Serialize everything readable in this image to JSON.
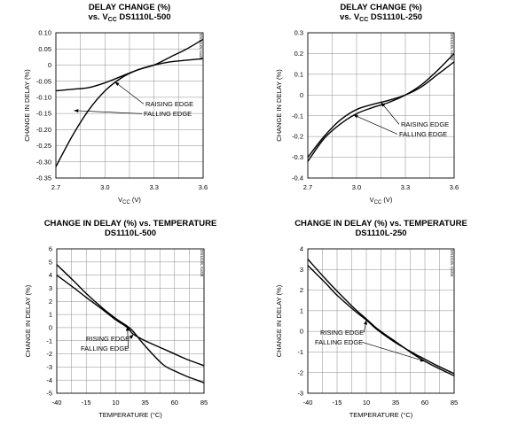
{
  "chart_data": [
    {
      "type": "line",
      "title_lines": [
        "DELAY CHANGE (%)",
        "vs. V_CC DS1110L-500"
      ],
      "title": "DELAY CHANGE (%) vs. VCC DS1110L-500",
      "xlabel": "VCC (V)",
      "ylabel": "CHANGE IN DELAY (%)",
      "xlim": [
        2.7,
        3.6
      ],
      "ylim": [
        -0.35,
        0.1
      ],
      "x_ticks": [
        "2.7",
        "3.0",
        "3.3",
        "3.6"
      ],
      "y_ticks": [
        "0.10",
        "0.05",
        "0",
        "-0.05",
        "-0.10",
        "-0.15",
        "-0.20",
        "-0.25",
        "-0.30",
        "-0.35"
      ],
      "grid": true,
      "code": "DS1110L toc01",
      "series": [
        {
          "name": "RAISING EDGE",
          "x": [
            2.7,
            2.8,
            2.9,
            3.0,
            3.1,
            3.2,
            3.3,
            3.4,
            3.5,
            3.6
          ],
          "y": [
            -0.08,
            -0.075,
            -0.07,
            -0.055,
            -0.035,
            -0.015,
            0.0,
            0.01,
            0.015,
            0.02
          ]
        },
        {
          "name": "FALLING EDGE",
          "x": [
            2.7,
            2.8,
            2.9,
            3.0,
            3.1,
            3.2,
            3.3,
            3.4,
            3.5,
            3.6
          ],
          "y": [
            -0.315,
            -0.22,
            -0.14,
            -0.08,
            -0.04,
            -0.015,
            0.0,
            0.025,
            0.05,
            0.08
          ]
        }
      ],
      "annotations": [
        {
          "text": "RAISING EDGE",
          "series": 0,
          "x": 3.06,
          "y": -0.052
        },
        {
          "text": "FALLING EDGE",
          "series": 1,
          "x": 2.81,
          "y": -0.141
        }
      ]
    },
    {
      "type": "line",
      "title_lines": [
        "DELAY CHANGE (%)",
        "vs. V_CC DS1110L-250"
      ],
      "title": "DELAY CHANGE (%) vs. VCC DS1110L-250",
      "xlabel": "VCC (V)",
      "ylabel": "CHANGE IN DELAY (%)",
      "xlim": [
        2.7,
        3.6
      ],
      "ylim": [
        -0.4,
        0.3
      ],
      "x_ticks": [
        "2.7",
        "3.0",
        "3.3",
        "3.6"
      ],
      "y_ticks": [
        "0.3",
        "0.2",
        "0.1",
        "0",
        "-0.1",
        "-0.2",
        "-0.3",
        "-0.4"
      ],
      "grid": true,
      "code": "DS1110L toc02",
      "series": [
        {
          "name": "RAISING EDGE",
          "x": [
            2.7,
            2.8,
            2.9,
            3.0,
            3.1,
            3.2,
            3.3,
            3.4,
            3.5,
            3.6
          ],
          "y": [
            -0.3,
            -0.2,
            -0.12,
            -0.07,
            -0.045,
            -0.025,
            0.0,
            0.04,
            0.1,
            0.16
          ]
        },
        {
          "name": "FALLING EDGE",
          "x": [
            2.7,
            2.8,
            2.9,
            3.0,
            3.1,
            3.2,
            3.3,
            3.4,
            3.5,
            3.6
          ],
          "y": [
            -0.32,
            -0.21,
            -0.14,
            -0.09,
            -0.06,
            -0.035,
            0.0,
            0.05,
            0.12,
            0.2
          ]
        }
      ],
      "annotations": [
        {
          "text": "RAISING EDGE",
          "series": 0,
          "x": 3.15,
          "y": -0.035
        },
        {
          "text": "FALLING EDGE",
          "series": 1,
          "x": 2.98,
          "y": -0.095
        }
      ]
    },
    {
      "type": "line",
      "title_lines": [
        "CHANGE IN DELAY (%) vs. TEMPERATURE",
        "DS1110L-500"
      ],
      "title": "CHANGE IN DELAY (%) vs. TEMPERATURE DS1110L-500",
      "xlabel": "TEMPERATURE (°C)",
      "ylabel": "CHANGE IN DELAY (%)",
      "xlim": [
        -40,
        85
      ],
      "ylim": [
        -5,
        6
      ],
      "x_ticks": [
        "-40",
        "-15",
        "10",
        "35",
        "60",
        "85"
      ],
      "y_ticks": [
        "6",
        "5",
        "4",
        "3",
        "2",
        "1",
        "0",
        "-1",
        "-2",
        "-3",
        "-4",
        "-5"
      ],
      "grid": true,
      "code": "DS1110L toc03",
      "series": [
        {
          "name": "RISING EDGE",
          "x": [
            -40,
            -25,
            -15,
            0,
            10,
            20,
            25,
            35,
            50,
            60,
            70,
            85
          ],
          "y": [
            4.0,
            3.0,
            2.3,
            1.3,
            0.6,
            0.0,
            -0.5,
            -1.0,
            -1.6,
            -2.0,
            -2.4,
            -2.9
          ]
        },
        {
          "name": "FALLING EDGE",
          "x": [
            -40,
            -25,
            -15,
            0,
            10,
            20,
            25,
            35,
            50,
            60,
            70,
            85
          ],
          "y": [
            4.8,
            3.5,
            2.6,
            1.4,
            0.7,
            0.1,
            -0.3,
            -1.4,
            -2.8,
            -3.3,
            -3.7,
            -4.2
          ]
        }
      ],
      "annotations": [
        {
          "text": "RISING EDGE",
          "series": 0,
          "x": 25,
          "y": -0.5
        },
        {
          "text": "FALLING EDGE",
          "series": 1,
          "x": 20,
          "y": 0.1
        }
      ]
    },
    {
      "type": "line",
      "title_lines": [
        "CHANGE IN DELAY (%) vs. TEMPERATURE",
        "DS1110L-250"
      ],
      "title": "CHANGE IN DELAY (%) vs. TEMPERATURE DS1110L-250",
      "xlabel": "TEMPERATURE (°C)",
      "ylabel": "CHANGE IN DELAY (%)",
      "xlim": [
        -40,
        85
      ],
      "ylim": [
        -3,
        4
      ],
      "x_ticks": [
        "-40",
        "-15",
        "10",
        "35",
        "60",
        "85"
      ],
      "y_ticks": [
        "4",
        "3",
        "2",
        "1",
        "0",
        "-1",
        "-2",
        "-3"
      ],
      "grid": true,
      "code": "DS1110L toc04",
      "series": [
        {
          "name": "RISING EDGE",
          "x": [
            -40,
            -25,
            -15,
            0,
            10,
            20,
            35,
            50,
            60,
            70,
            85
          ],
          "y": [
            3.2,
            2.35,
            1.75,
            1.0,
            0.55,
            0.05,
            -0.55,
            -1.05,
            -1.35,
            -1.65,
            -2.05
          ]
        },
        {
          "name": "FALLING EDGE",
          "x": [
            -40,
            -25,
            -15,
            0,
            10,
            20,
            35,
            50,
            60,
            70,
            85
          ],
          "y": [
            3.5,
            2.55,
            1.95,
            1.1,
            0.6,
            0.1,
            -0.5,
            -1.1,
            -1.45,
            -1.75,
            -2.15
          ]
        }
      ],
      "annotations": [
        {
          "text": "RISING EDGE",
          "series": 0,
          "x": 10,
          "y": 0.55
        },
        {
          "text": "FALLING EDGE",
          "series": 1,
          "x": 60,
          "y": -1.45
        }
      ]
    }
  ]
}
